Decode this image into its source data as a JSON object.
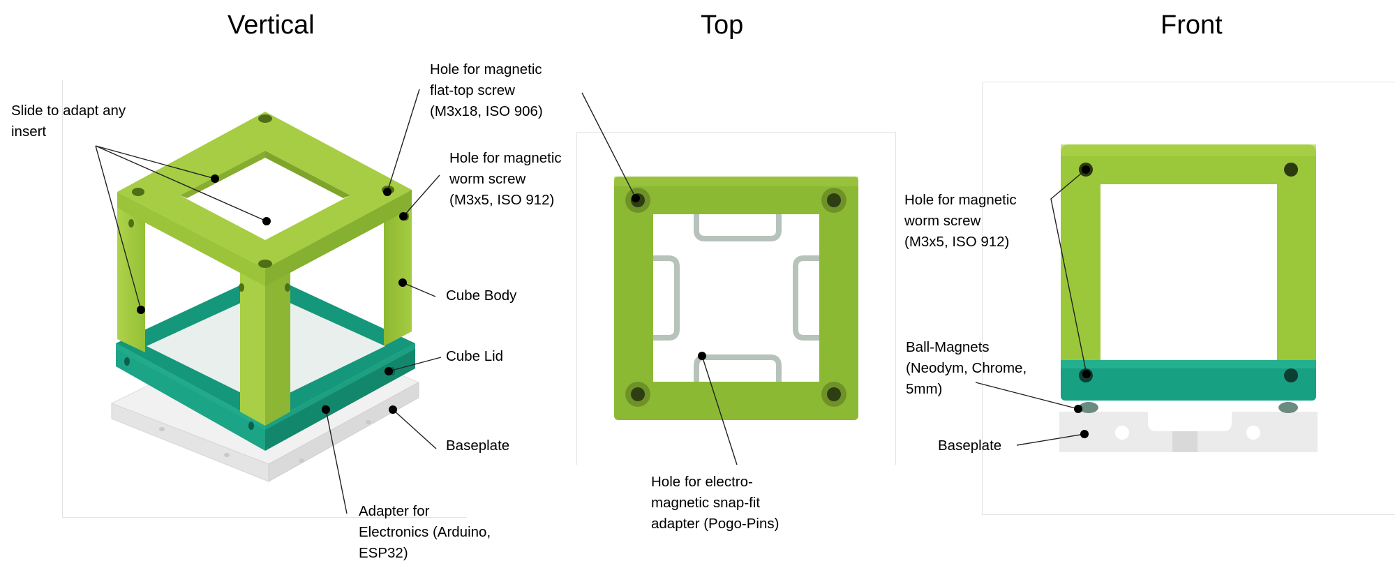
{
  "views": {
    "vertical": {
      "title": "Vertical",
      "labels": {
        "slide": [
          "Slide to adapt any",
          "insert"
        ],
        "flat_top_screw": [
          "Hole for magnetic",
          "flat-top screw",
          "(M3x18, ISO 906)"
        ],
        "worm_screw": [
          "Hole for magnetic",
          "worm screw",
          "(M3x5, ISO 912)"
        ],
        "cube_body": [
          "Cube Body"
        ],
        "cube_lid": [
          "Cube Lid"
        ],
        "baseplate": [
          "Baseplate"
        ],
        "adapter": [
          "Adapter for",
          "Electronics (Arduino,",
          "ESP32)"
        ]
      }
    },
    "top": {
      "title": "Top",
      "labels": {
        "snap_fit": [
          "Hole for electro-",
          "magnetic snap-fit",
          "adapter (Pogo-Pins)"
        ]
      }
    },
    "front": {
      "title": "Front",
      "labels": {
        "worm_screw": [
          "Hole for magnetic",
          "worm screw",
          "(M3x5, ISO 912)"
        ],
        "ball_magnets": [
          "Ball-Magnets",
          "(Neodym, Chrome,",
          "5mm)"
        ],
        "baseplate": [
          "Baseplate"
        ]
      }
    }
  },
  "colors": {
    "cube_body": "#9bc43a",
    "cube_body_dark": "#7ea52a",
    "cube_body_light": "#b2d651",
    "cube_lid": "#1aa183",
    "cube_lid_dark": "#12876c",
    "baseplate": "#eaeaea",
    "baseplate_shade": "#d6d6d6",
    "leader": "#222222"
  }
}
